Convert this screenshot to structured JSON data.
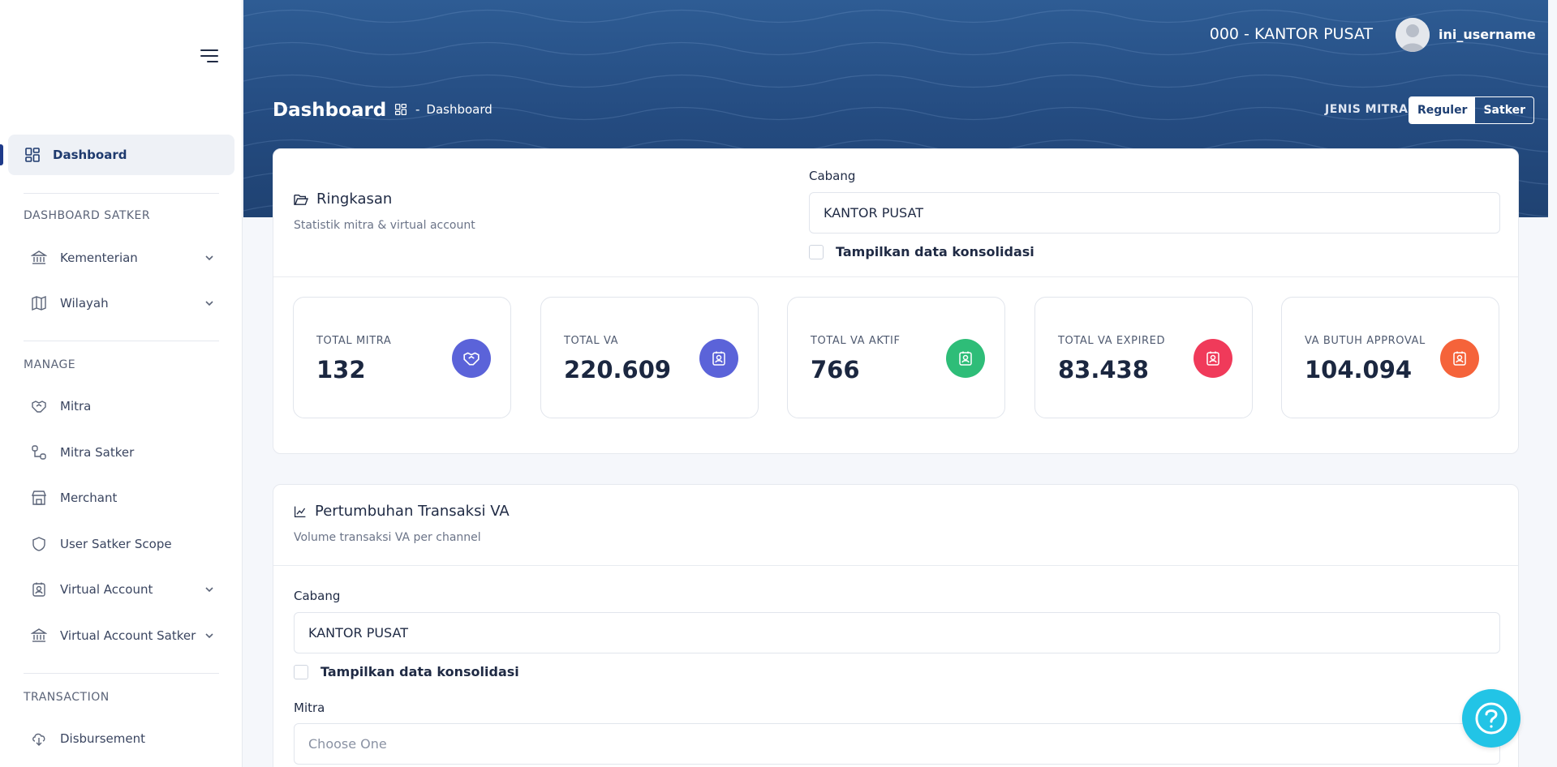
{
  "sidebar": {
    "active_item": "Dashboard",
    "sections": {
      "dashboard_satker": "DASHBOARD SATKER",
      "manage": "MANAGE",
      "transaction": "TRANSACTION"
    },
    "items": {
      "kementerian": "Kementerian",
      "wilayah": "Wilayah",
      "mitra": "Mitra",
      "mitra_satker": "Mitra Satker",
      "merchant": "Merchant",
      "user_satker_scope": "User Satker Scope",
      "virtual_account": "Virtual Account",
      "virtual_account_satker": "Virtual Account Satker",
      "disbursement": "Disbursement"
    }
  },
  "header": {
    "org": "000 - KANTOR PUSAT",
    "username": "ini_username",
    "page_title": "Dashboard",
    "breadcrumb_sep": "-",
    "breadcrumb": "Dashboard",
    "jenis_mitra_label": "JENIS MITRA",
    "jenis_mitra_options": [
      "Reguler",
      "Satker"
    ],
    "jenis_mitra_selected": "Reguler"
  },
  "ringkasan": {
    "title": "Ringkasan",
    "subtitle": "Statistik mitra & virtual account",
    "cabang_label": "Cabang",
    "cabang_value": "KANTOR PUSAT",
    "konsolidasi_label": "Tampilkan data konsolidasi",
    "stats": [
      {
        "label": "TOTAL MITRA",
        "value": "132",
        "color": "#5b63d9"
      },
      {
        "label": "TOTAL VA",
        "value": "220.609",
        "color": "#5b63d9"
      },
      {
        "label": "TOTAL VA AKTIF",
        "value": "766",
        "color": "#2ebd78"
      },
      {
        "label": "TOTAL VA EXPIRED",
        "value": "83.438",
        "color": "#f03a5a"
      },
      {
        "label": "VA BUTUH APPROVAL",
        "value": "104.094",
        "color": "#f5633a"
      }
    ]
  },
  "pertumbuhan": {
    "title": "Pertumbuhan Transaksi VA",
    "subtitle": "Volume transaksi VA per channel",
    "cabang_label": "Cabang",
    "cabang_value": "KANTOR PUSAT",
    "konsolidasi_label": "Tampilkan data konsolidasi",
    "mitra_label": "Mitra",
    "mitra_placeholder": "Choose One"
  },
  "colors": {
    "header_blue": "#2a5590",
    "help_button": "#22c4e6"
  }
}
